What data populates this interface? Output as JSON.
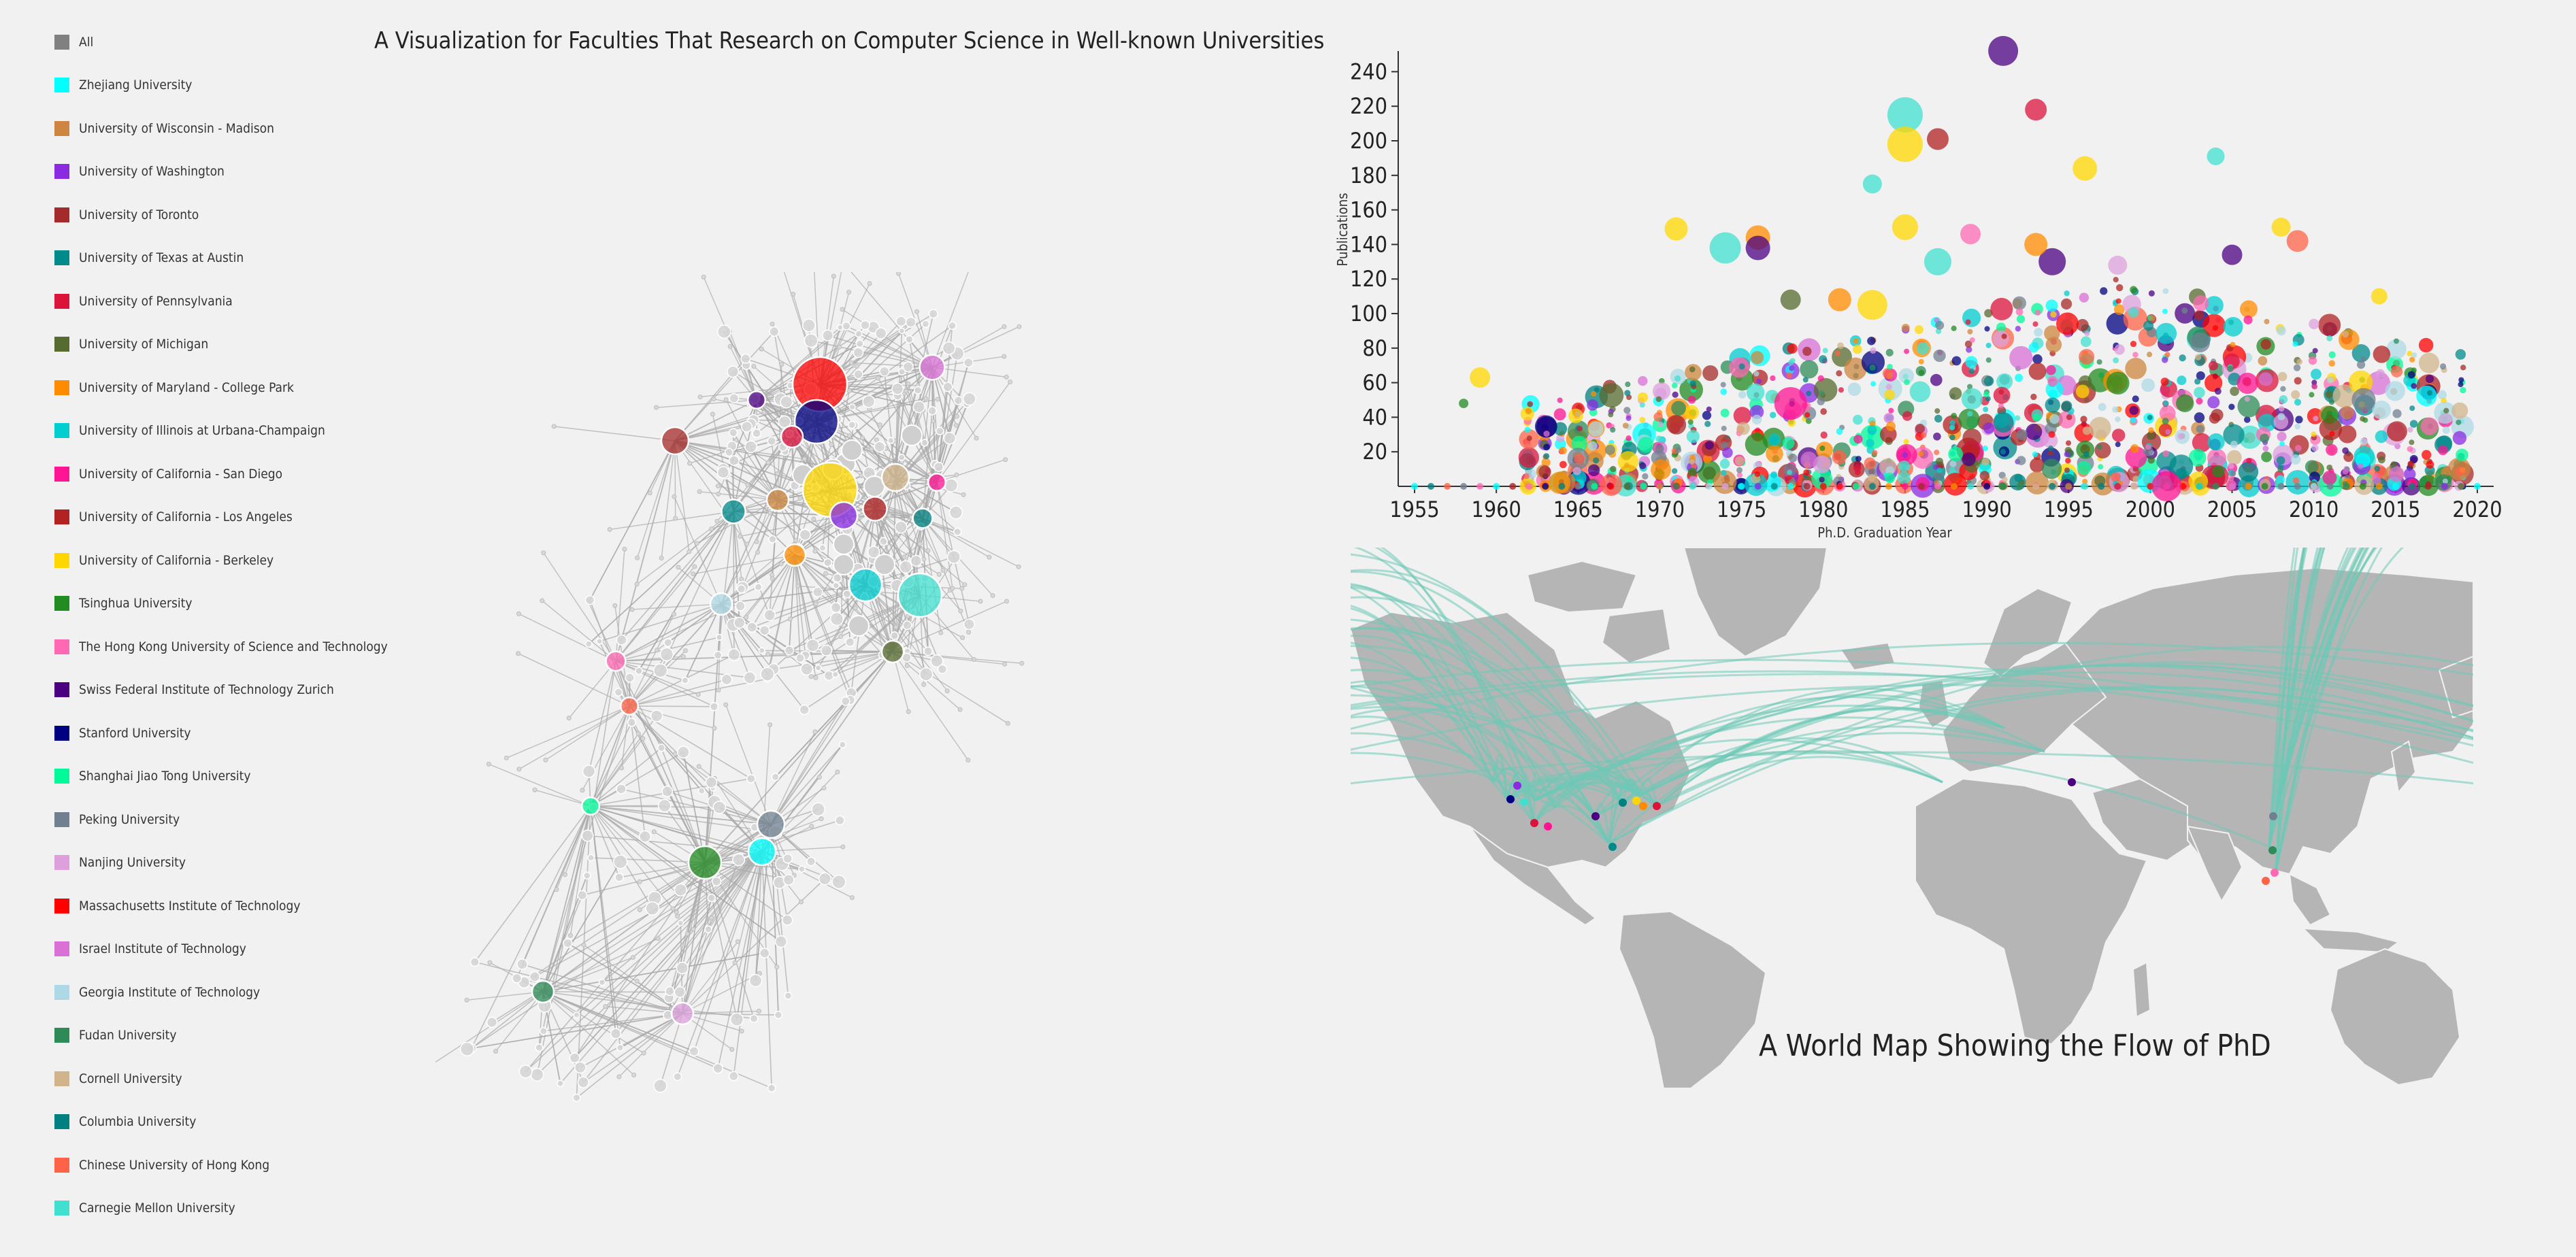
{
  "title": "A Visualization for Faculties That Research on Computer Science in Well-known Universities",
  "map_title": "A World Map Showing the Flow of PhD",
  "colors": {
    "background": "#f1f1f1",
    "land": "#b5b5b5",
    "flow": "#6ec9b7",
    "network_edge": "#a9a9a9"
  },
  "legend": [
    {
      "label": "All",
      "color": "#808080"
    },
    {
      "label": "Zhejiang University",
      "color": "#00ffff"
    },
    {
      "label": "University of Wisconsin - Madison",
      "color": "#cd853f"
    },
    {
      "label": "University of Washington",
      "color": "#8a2be2"
    },
    {
      "label": "University of Toronto",
      "color": "#a52a2a"
    },
    {
      "label": "University of Texas at Austin",
      "color": "#008b8b"
    },
    {
      "label": "University of Pennsylvania",
      "color": "#dc143c"
    },
    {
      "label": "University of Michigan",
      "color": "#556b2f"
    },
    {
      "label": "University of Maryland - College Park",
      "color": "#ff8c00"
    },
    {
      "label": "University of Illinois at Urbana-Champaign",
      "color": "#00ced1"
    },
    {
      "label": "University of California - San Diego",
      "color": "#ff1493"
    },
    {
      "label": "University of California - Los Angeles",
      "color": "#b22222"
    },
    {
      "label": "University of California - Berkeley",
      "color": "#ffd700"
    },
    {
      "label": "Tsinghua University",
      "color": "#228b22"
    },
    {
      "label": "The Hong Kong University of Science and Technology",
      "color": "#ff69b4"
    },
    {
      "label": "Swiss Federal Institute of Technology Zurich",
      "color": "#4b0082"
    },
    {
      "label": "Stanford University",
      "color": "#000080"
    },
    {
      "label": "Shanghai Jiao Tong University",
      "color": "#00fa9a"
    },
    {
      "label": "Peking University",
      "color": "#708090"
    },
    {
      "label": "Nanjing University",
      "color": "#dda0dd"
    },
    {
      "label": "Massachusetts Institute of Technology",
      "color": "#ff0000"
    },
    {
      "label": "Israel Institute of Technology",
      "color": "#da70d6"
    },
    {
      "label": "Georgia Institute of Technology",
      "color": "#add8e6"
    },
    {
      "label": "Fudan University",
      "color": "#2e8b57"
    },
    {
      "label": "Cornell University",
      "color": "#d2b48c"
    },
    {
      "label": "Columbia University",
      "color": "#008080"
    },
    {
      "label": "Chinese University of Hong Kong",
      "color": "#ff6347"
    },
    {
      "label": "Carnegie Mellon University",
      "color": "#40e0d0"
    }
  ],
  "chart_data": [
    {
      "type": "network",
      "description_nodes": "university hubs (large colored circles) connected to many small faculty nodes (grey)",
      "hubs": [
        {
          "name": "Massachusetts Institute of Technology",
          "weight": 5
        },
        {
          "name": "Stanford University",
          "weight": 4
        },
        {
          "name": "University of California - Berkeley",
          "weight": 5
        },
        {
          "name": "Carnegie Mellon University",
          "weight": 4
        },
        {
          "name": "University of Illinois at Urbana-Champaign",
          "weight": 3
        },
        {
          "name": "University of Washington",
          "weight": 2.5
        },
        {
          "name": "University of Toronto",
          "weight": 2.5
        },
        {
          "name": "Israel Institute of Technology",
          "weight": 2.3
        },
        {
          "name": "Cornell University",
          "weight": 2.5
        },
        {
          "name": "University of California - Los Angeles",
          "weight": 2.2
        },
        {
          "name": "University of Wisconsin - Madison",
          "weight": 2
        },
        {
          "name": "University of Texas at Austin",
          "weight": 2.2
        },
        {
          "name": "Columbia University",
          "weight": 1.8
        },
        {
          "name": "University of Maryland - College Park",
          "weight": 2
        },
        {
          "name": "University of Michigan",
          "weight": 2
        },
        {
          "name": "Georgia Institute of Technology",
          "weight": 2
        },
        {
          "name": "University of Pennsylvania",
          "weight": 2
        },
        {
          "name": "Swiss Federal Institute of Technology Zurich",
          "weight": 1.6
        },
        {
          "name": "University of California - San Diego",
          "weight": 1.6
        },
        {
          "name": "The Hong Kong University of Science and Technology",
          "weight": 1.8
        },
        {
          "name": "Chinese University of Hong Kong",
          "weight": 1.6
        },
        {
          "name": "Shanghai Jiao Tong University",
          "weight": 1.6
        },
        {
          "name": "Peking University",
          "weight": 2.5
        },
        {
          "name": "Tsinghua University",
          "weight": 3
        },
        {
          "name": "Zhejiang University",
          "weight": 2.5
        },
        {
          "name": "Fudan University",
          "weight": 2
        },
        {
          "name": "Nanjing University",
          "weight": 2
        }
      ]
    },
    {
      "type": "scatter",
      "xlabel": "Ph.D. Graduation Year",
      "ylabel": "Publications",
      "xlim": [
        1954,
        2021
      ],
      "ylim": [
        0,
        250
      ],
      "xticks": [
        1955,
        1960,
        1965,
        1970,
        1975,
        1980,
        1985,
        1990,
        1995,
        2000,
        2005,
        2010,
        2015,
        2020
      ],
      "yticks": [
        20,
        40,
        60,
        80,
        100,
        120,
        140,
        160,
        180,
        200,
        220,
        240
      ],
      "notable_points": [
        {
          "x": 1991,
          "y": 252,
          "size": 22,
          "color": "#4b0082"
        },
        {
          "x": 1993,
          "y": 218,
          "size": 16,
          "color": "#dc143c"
        },
        {
          "x": 1985,
          "y": 215,
          "size": 26,
          "color": "#40e0d0"
        },
        {
          "x": 1985,
          "y": 198,
          "size": 26,
          "color": "#ffd700"
        },
        {
          "x": 1987,
          "y": 201,
          "size": 16,
          "color": "#b22222"
        },
        {
          "x": 1996,
          "y": 184,
          "size": 18,
          "color": "#ffd700"
        },
        {
          "x": 2004,
          "y": 191,
          "size": 13,
          "color": "#40e0d0"
        },
        {
          "x": 1983,
          "y": 175,
          "size": 14,
          "color": "#40e0d0"
        },
        {
          "x": 1971,
          "y": 149,
          "size": 17,
          "color": "#ffd700"
        },
        {
          "x": 1985,
          "y": 150,
          "size": 19,
          "color": "#ffd700"
        },
        {
          "x": 1976,
          "y": 144,
          "size": 18,
          "color": "#ff8c00"
        },
        {
          "x": 1976,
          "y": 138,
          "size": 18,
          "color": "#4b0082"
        },
        {
          "x": 1974,
          "y": 138,
          "size": 23,
          "color": "#40e0d0"
        },
        {
          "x": 1987,
          "y": 130,
          "size": 20,
          "color": "#40e0d0"
        },
        {
          "x": 1994,
          "y": 130,
          "size": 20,
          "color": "#4b0082"
        },
        {
          "x": 1989,
          "y": 146,
          "size": 15,
          "color": "#ff69b4"
        },
        {
          "x": 1993,
          "y": 140,
          "size": 17,
          "color": "#ff8c00"
        },
        {
          "x": 2008,
          "y": 150,
          "size": 14,
          "color": "#ffd700"
        },
        {
          "x": 2009,
          "y": 142,
          "size": 16,
          "color": "#ff6347"
        },
        {
          "x": 2005,
          "y": 134,
          "size": 15,
          "color": "#4b0082"
        },
        {
          "x": 1998,
          "y": 128,
          "size": 14,
          "color": "#dda0dd"
        },
        {
          "x": 1983,
          "y": 105,
          "size": 22,
          "color": "#ffd700"
        },
        {
          "x": 1981,
          "y": 108,
          "size": 17,
          "color": "#ff8c00"
        },
        {
          "x": 1978,
          "y": 108,
          "size": 15,
          "color": "#556b2f"
        },
        {
          "x": 1959,
          "y": 63,
          "size": 15,
          "color": "#ffd700"
        },
        {
          "x": 1958,
          "y": 48,
          "size": 7,
          "color": "#228b22"
        },
        {
          "x": 2014,
          "y": 110,
          "size": 12,
          "color": "#ffd700"
        },
        {
          "x": 1978,
          "y": 48,
          "size": 24,
          "color": "#ff1493"
        },
        {
          "x": 2001,
          "y": 0,
          "size": 22,
          "color": "#ff1493"
        }
      ],
      "bulk_note": "Dense cloud of hundreds of points from ~1962 to ~2019 with publications mostly 0-100"
    }
  ]
}
